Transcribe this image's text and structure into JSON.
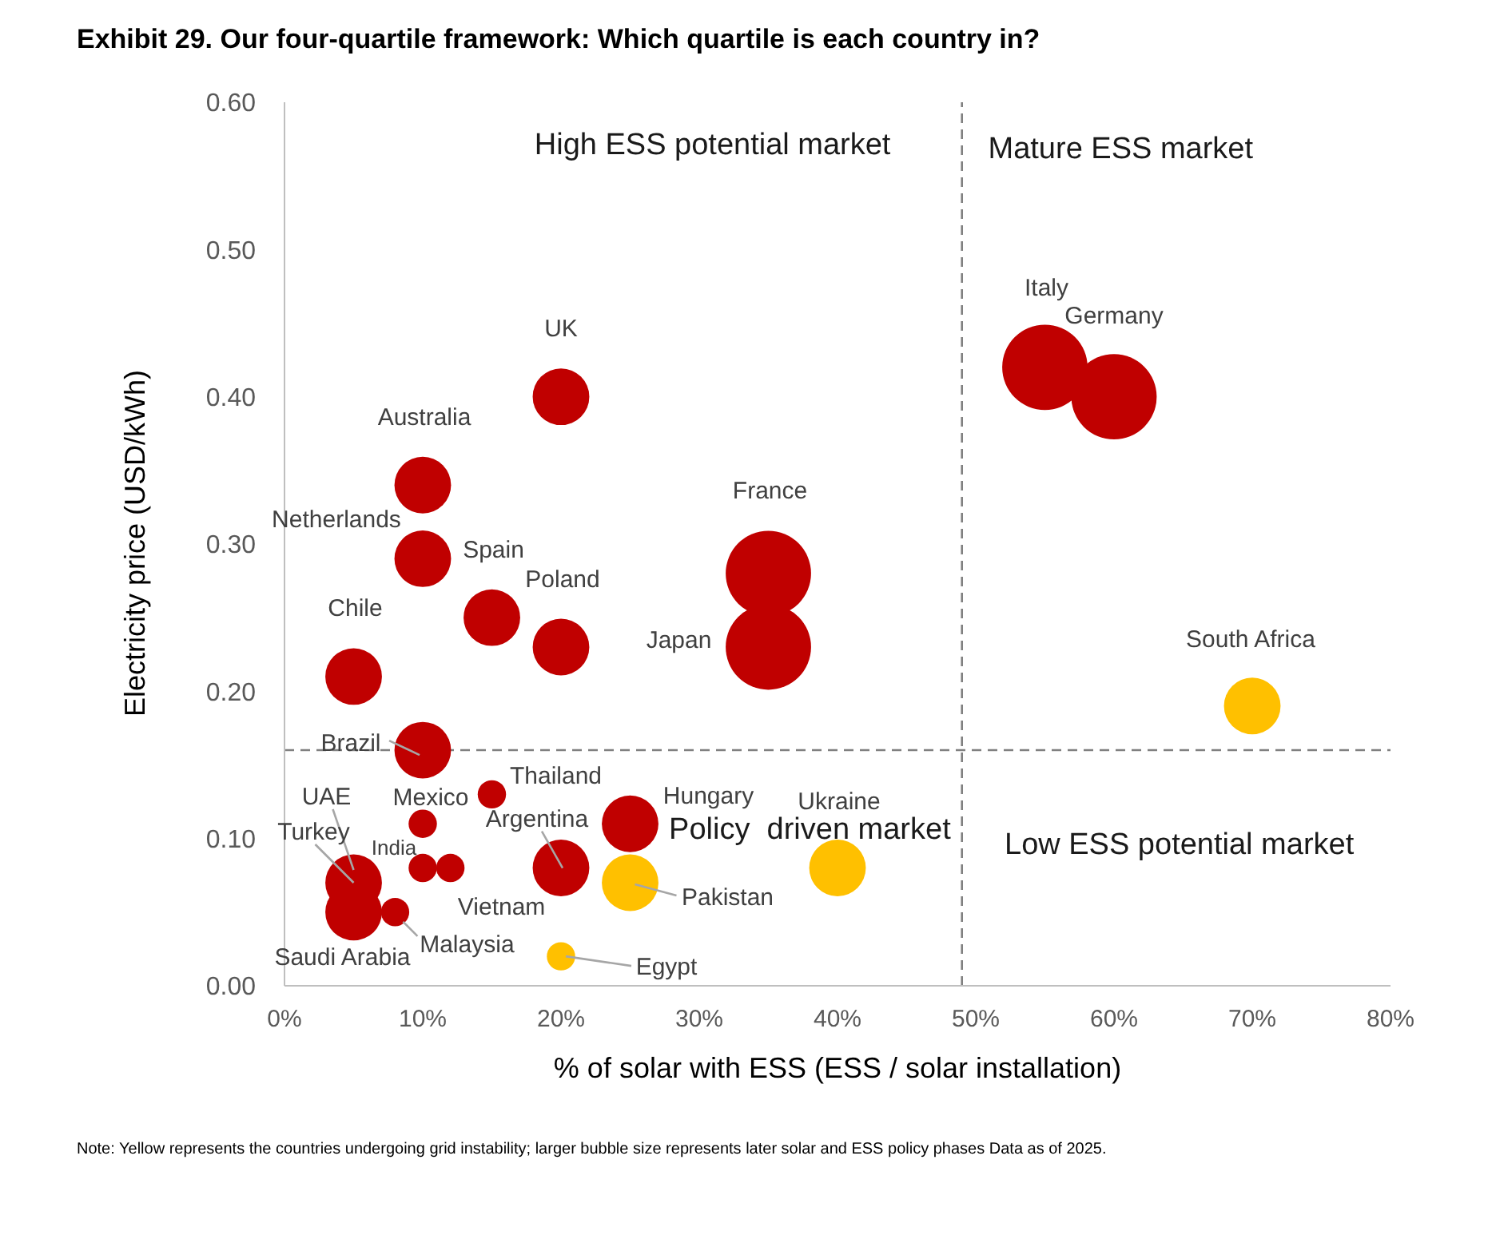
{
  "chart_data": {
    "type": "bubble",
    "title": "Exhibit 29. Our four-quartile framework: Which quartile is each country in?",
    "xlabel": "% of solar with ESS (ESS / solar installation)",
    "ylabel": "Electricity price (USD/kWh)",
    "series": [
      {
        "color": "#c00000",
        "x": [
          20,
          10,
          10,
          15,
          20,
          5,
          35,
          35,
          55,
          60,
          10,
          15,
          10,
          25,
          10,
          12,
          20,
          5,
          8,
          5
        ],
        "values": [
          0.4,
          0.34,
          0.29,
          0.25,
          0.23,
          0.21,
          0.28,
          0.23,
          0.42,
          0.4,
          0.16,
          0.13,
          0.11,
          0.11,
          0.08,
          0.08,
          0.08,
          0.05,
          0.05,
          0.07
        ],
        "sizes": [
          0.44,
          0.44,
          0.44,
          0.44,
          0.44,
          0.44,
          1,
          1,
          1,
          1,
          0.44,
          0.11,
          0.11,
          0.44,
          0.11,
          0.11,
          0.44,
          0.44,
          0.11,
          0.44
        ]
      },
      {
        "color": "#ffc000",
        "x": [
          70,
          40,
          25,
          20
        ],
        "values": [
          0.19,
          0.08,
          0.07,
          0.02
        ],
        "sizes": [
          0.44,
          0.44,
          0.44,
          0.11
        ]
      }
    ],
    "xlim": [
      0,
      80
    ],
    "xticks": [
      {
        "value": 0,
        "label": "0%"
      },
      {
        "value": 10,
        "label": "10%"
      },
      {
        "value": 20,
        "label": "20%"
      },
      {
        "value": 30,
        "label": "30%"
      },
      {
        "value": 40,
        "label": "40%"
      },
      {
        "value": 50,
        "label": "50%"
      },
      {
        "value": 60,
        "label": "60%"
      },
      {
        "value": 70,
        "label": "70%"
      },
      {
        "value": 80,
        "label": "80%"
      }
    ],
    "ylim": [
      0,
      0.6
    ],
    "yticks": [
      {
        "value": 0,
        "label": "0.00"
      },
      {
        "value": 0.1,
        "label": "0.10"
      },
      {
        "value": 0.2,
        "label": "0.20"
      },
      {
        "value": 0.3,
        "label": "0.30"
      },
      {
        "value": 0.4,
        "label": "0.40"
      },
      {
        "value": 0.5,
        "label": "0.50"
      },
      {
        "value": 0.6,
        "label": "0.60"
      }
    ],
    "marker": "circle",
    "ref_lines": [
      {
        "axis": "x",
        "value": 49,
        "color": "#808080",
        "line_style": "dashed"
      },
      {
        "axis": "y",
        "value": 0.16,
        "color": "#808080",
        "line_style": "dashed"
      }
    ],
    "annotations": [
      "High ESS potential market",
      "Mature ESS market",
      "Policy  driven market",
      "Low ESS potential market",
      {
        "text": "UK",
        "x": 20,
        "y": 0.4
      },
      {
        "text": "Australia",
        "x": 10,
        "y": 0.34
      },
      {
        "text": "Netherlands",
        "x": 10,
        "y": 0.29
      },
      {
        "text": "Spain",
        "x": 15,
        "y": 0.25
      },
      {
        "text": "Poland",
        "x": 20,
        "y": 0.23
      },
      {
        "text": "Chile",
        "x": 5,
        "y": 0.21
      },
      {
        "text": "France",
        "x": 35,
        "y": 0.28
      },
      {
        "text": "Japan",
        "x": 35,
        "y": 0.23
      },
      {
        "text": "Italy",
        "x": 55,
        "y": 0.42
      },
      {
        "text": "Germany",
        "x": 60,
        "y": 0.4
      },
      {
        "text": "Brazil",
        "x": 10,
        "y": 0.16
      },
      {
        "text": "Thailand",
        "x": 15,
        "y": 0.13
      },
      {
        "text": "Mexico",
        "x": 10,
        "y": 0.11
      },
      {
        "text": "Hungary",
        "x": 25,
        "y": 0.11
      },
      {
        "text": "India",
        "x": 10,
        "y": 0.08
      },
      {
        "text": "Vietnam",
        "x": 12,
        "y": 0.08
      },
      {
        "text": "Argentina",
        "x": 20,
        "y": 0.08
      },
      {
        "text": "UAE",
        "x": 5,
        "y": 0.07
      },
      {
        "text": "Turkey",
        "x": 5,
        "y": 0.07
      },
      {
        "text": "Saudi Arabia",
        "x": 5,
        "y": 0.05
      },
      {
        "text": "Malaysia",
        "x": 8,
        "y": 0.05
      },
      {
        "text": "South Africa",
        "x": 70,
        "y": 0.19
      },
      {
        "text": "Ukraine",
        "x": 40,
        "y": 0.08
      },
      {
        "text": "Pakistan",
        "x": 25,
        "y": 0.07
      },
      {
        "text": "Egypt",
        "x": 20,
        "y": 0.02
      },
      "Note: Yellow represents the countries undergoing grid instability; larger bubble size represents later solar and ESS policy phases Data as of 2025."
    ]
  }
}
